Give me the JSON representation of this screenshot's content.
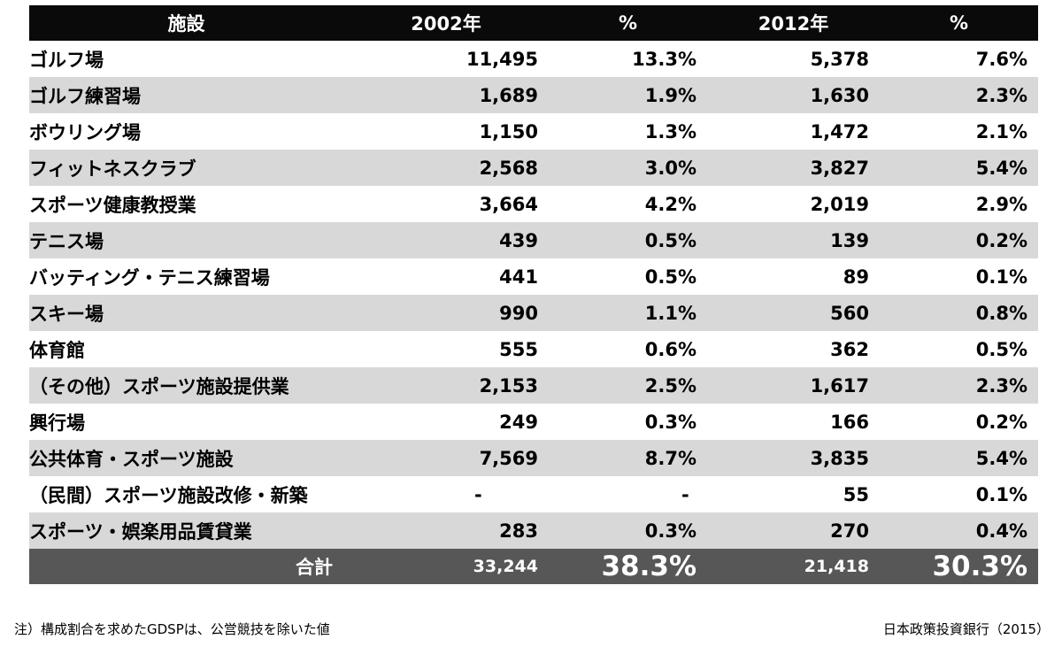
{
  "header": [
    "施設",
    "2002年",
    "%",
    "2012年",
    "%"
  ],
  "rows": [
    {
      "name": "ゴルフ場",
      "v2002": "11,495",
      "p2002": "13.3%",
      "v2012": "5,378",
      "p2012": "7.6%"
    },
    {
      "name": "ゴルフ練習場",
      "v2002": "1,689",
      "p2002": "1.9%",
      "v2012": "1,630",
      "p2012": "2.3%"
    },
    {
      "name": "ボウリング場",
      "v2002": "1,150",
      "p2002": "1.3%",
      "v2012": "1,472",
      "p2012": "2.1%"
    },
    {
      "name": "フィットネスクラブ",
      "v2002": "2,568",
      "p2002": "3.0%",
      "v2012": "3,827",
      "p2012": "5.4%"
    },
    {
      "name": "スポーツ健康教授業",
      "v2002": "3,664",
      "p2002": "4.2%",
      "v2012": "2,019",
      "p2012": "2.9%"
    },
    {
      "name": "テニス場",
      "v2002": "439",
      "p2002": "0.5%",
      "v2012": "139",
      "p2012": "0.2%"
    },
    {
      "name": "バッティング・テニス練習場",
      "v2002": "441",
      "p2002": "0.5%",
      "v2012": "89",
      "p2012": "0.1%"
    },
    {
      "name": "スキー場",
      "v2002": "990",
      "p2002": "1.1%",
      "v2012": "560",
      "p2012": "0.8%"
    },
    {
      "name": "体育館",
      "v2002": "555",
      "p2002": "0.6%",
      "v2012": "362",
      "p2012": "0.5%"
    },
    {
      "name": "（その他）スポーツ施設提供業",
      "v2002": "2,153",
      "p2002": "2.5%",
      "v2012": "1,617",
      "p2012": "2.3%"
    },
    {
      "name": "興行場",
      "v2002": "249",
      "p2002": "0.3%",
      "v2012": "166",
      "p2012": "0.2%"
    },
    {
      "name": "公共体育・スポーツ施設",
      "v2002": "7,569",
      "p2002": "8.7%",
      "v2012": "3,835",
      "p2012": "5.4%"
    },
    {
      "name": "（民間）スポーツ施設改修・新築",
      "v2002": "-",
      "p2002": "-",
      "v2012": "55",
      "p2012": "0.1%"
    },
    {
      "name": "スポーツ・娯楽用品賃貸業",
      "v2002": "283",
      "p2002": "0.3%",
      "v2012": "270",
      "p2012": "0.4%"
    }
  ],
  "total": {
    "label": "合計",
    "v2002": "33,244",
    "p2002": "38.3%",
    "v2012": "21,418",
    "p2012": "30.3%"
  },
  "note": "注）構成割合を求めたGDSPは、公営競技を除いた値",
  "source": "日本政策投資銀行（2015）",
  "colors": {
    "header_bg": "#0a0a0a",
    "stripe": "#d8d8d8",
    "total_bg": "#575757"
  }
}
